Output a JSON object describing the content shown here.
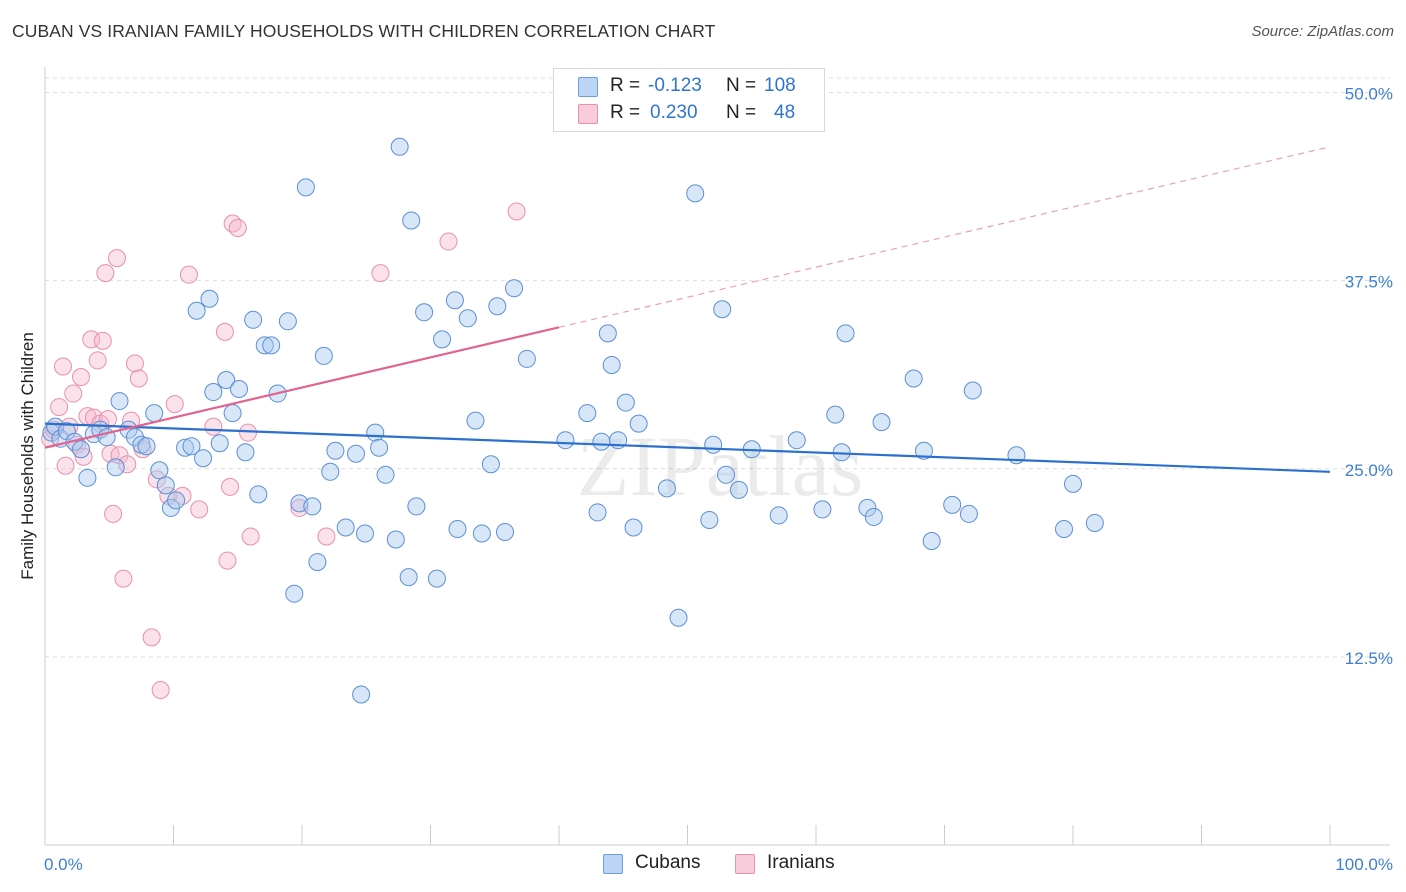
{
  "title": "CUBAN VS IRANIAN FAMILY HOUSEHOLDS WITH CHILDREN CORRELATION CHART",
  "source": "Source: ZipAtlas.com",
  "watermark": "ZIPatlas",
  "stats": [
    {
      "r_label": "R =",
      "r_value": "-0.123",
      "n_label": "N =",
      "n_value": "108"
    },
    {
      "r_label": "R =",
      "r_value": "0.230",
      "n_label": "N =",
      "n_value": "48"
    }
  ],
  "legend": [
    "Cubans",
    "Iranians"
  ],
  "colors": {
    "cubans": "#a9c9f0",
    "cubans_line": "#2a70cc",
    "iranians": "#f5b8cc",
    "iranians_line": "#e0648f",
    "tick_text": "#3d7fd4"
  },
  "chart_data": {
    "type": "scatter",
    "ylabel": "Family Households with Children",
    "xlabel": "",
    "x_tick_labels": [
      "0.0%",
      "100.0%"
    ],
    "y_tick_labels": [
      "12.5%",
      "25.0%",
      "37.5%",
      "50.0%"
    ],
    "y_ticks": [
      12.5,
      25.0,
      37.5,
      50.0
    ],
    "xlim": [
      0,
      100
    ],
    "ylim": [
      0,
      51.5
    ],
    "grid": true,
    "series": [
      {
        "name": "Cubans",
        "trend": {
          "x": [
            0,
            100
          ],
          "y": [
            28.0,
            24.8
          ]
        },
        "points": [
          [
            0.5,
            27.4
          ],
          [
            0.8,
            27.8
          ],
          [
            1.2,
            27.0
          ],
          [
            1.7,
            27.5
          ],
          [
            2.3,
            26.8
          ],
          [
            2.8,
            26.3
          ],
          [
            3.3,
            24.4
          ],
          [
            3.8,
            27.3
          ],
          [
            4.3,
            27.6
          ],
          [
            4.8,
            27.1
          ],
          [
            5.5,
            25.1
          ],
          [
            5.8,
            29.5
          ],
          [
            6.5,
            27.6
          ],
          [
            7.0,
            27.1
          ],
          [
            7.5,
            26.6
          ],
          [
            7.9,
            26.5
          ],
          [
            8.5,
            28.7
          ],
          [
            8.9,
            24.9
          ],
          [
            9.4,
            23.9
          ],
          [
            9.8,
            22.4
          ],
          [
            10.2,
            22.9
          ],
          [
            10.9,
            26.4
          ],
          [
            11.4,
            26.5
          ],
          [
            11.8,
            35.5
          ],
          [
            12.3,
            25.7
          ],
          [
            12.8,
            36.3
          ],
          [
            13.1,
            30.1
          ],
          [
            13.6,
            26.7
          ],
          [
            14.1,
            30.9
          ],
          [
            14.6,
            28.7
          ],
          [
            15.1,
            30.3
          ],
          [
            15.6,
            26.1
          ],
          [
            16.2,
            34.9
          ],
          [
            16.6,
            23.3
          ],
          [
            17.1,
            33.2
          ],
          [
            17.6,
            33.2
          ],
          [
            18.1,
            30.0
          ],
          [
            18.9,
            34.8
          ],
          [
            19.4,
            16.7
          ],
          [
            19.8,
            22.7
          ],
          [
            20.3,
            43.7
          ],
          [
            20.8,
            22.5
          ],
          [
            21.2,
            18.8
          ],
          [
            21.7,
            32.5
          ],
          [
            22.2,
            24.8
          ],
          [
            22.6,
            26.2
          ],
          [
            23.4,
            21.1
          ],
          [
            24.2,
            26.0
          ],
          [
            24.6,
            10.0
          ],
          [
            24.9,
            20.7
          ],
          [
            25.7,
            27.4
          ],
          [
            26.0,
            26.4
          ],
          [
            26.5,
            24.6
          ],
          [
            27.3,
            20.3
          ],
          [
            27.6,
            46.4
          ],
          [
            28.3,
            17.8
          ],
          [
            28.5,
            41.5
          ],
          [
            28.9,
            22.5
          ],
          [
            29.5,
            35.4
          ],
          [
            30.5,
            17.7
          ],
          [
            30.9,
            33.6
          ],
          [
            31.9,
            36.2
          ],
          [
            32.1,
            21.0
          ],
          [
            32.9,
            35.0
          ],
          [
            33.5,
            28.2
          ],
          [
            34.0,
            20.7
          ],
          [
            34.7,
            25.3
          ],
          [
            35.2,
            35.8
          ],
          [
            35.8,
            20.8
          ],
          [
            36.5,
            37.0
          ],
          [
            37.5,
            32.3
          ],
          [
            40.5,
            26.9
          ],
          [
            42.2,
            28.7
          ],
          [
            43.0,
            22.1
          ],
          [
            43.3,
            26.8
          ],
          [
            43.8,
            34.0
          ],
          [
            44.1,
            31.9
          ],
          [
            44.6,
            26.9
          ],
          [
            45.2,
            29.4
          ],
          [
            45.8,
            21.1
          ],
          [
            46.2,
            28.0
          ],
          [
            48.4,
            23.7
          ],
          [
            49.3,
            15.1
          ],
          [
            50.6,
            43.3
          ],
          [
            51.7,
            21.6
          ],
          [
            52.0,
            26.6
          ],
          [
            52.7,
            35.6
          ],
          [
            53.0,
            24.6
          ],
          [
            54.0,
            23.6
          ],
          [
            55.0,
            26.3
          ],
          [
            57.1,
            21.9
          ],
          [
            58.5,
            26.9
          ],
          [
            60.5,
            22.3
          ],
          [
            61.5,
            28.6
          ],
          [
            62.0,
            26.1
          ],
          [
            62.3,
            34.0
          ],
          [
            64.0,
            22.4
          ],
          [
            64.5,
            21.8
          ],
          [
            65.1,
            28.1
          ],
          [
            67.6,
            31.0
          ],
          [
            68.4,
            26.2
          ],
          [
            69.0,
            20.2
          ],
          [
            70.6,
            22.6
          ],
          [
            71.9,
            22.0
          ],
          [
            72.2,
            30.2
          ],
          [
            75.6,
            25.9
          ],
          [
            79.3,
            21.0
          ],
          [
            80.0,
            24.0
          ],
          [
            81.7,
            21.4
          ]
        ]
      },
      {
        "name": "Iranians",
        "trend": {
          "x": [
            0,
            40
          ],
          "y": [
            26.4,
            34.4
          ]
        },
        "trend_extension": {
          "x": [
            40,
            100
          ],
          "y": [
            34.4,
            46.4
          ]
        },
        "points": [
          [
            0.4,
            27.0
          ],
          [
            0.7,
            27.6
          ],
          [
            1.1,
            29.1
          ],
          [
            1.4,
            31.8
          ],
          [
            1.6,
            25.2
          ],
          [
            1.9,
            27.8
          ],
          [
            2.2,
            30.0
          ],
          [
            2.5,
            26.6
          ],
          [
            2.8,
            31.1
          ],
          [
            3.0,
            25.8
          ],
          [
            3.3,
            28.5
          ],
          [
            3.6,
            33.6
          ],
          [
            3.8,
            28.4
          ],
          [
            4.1,
            32.2
          ],
          [
            4.3,
            28.0
          ],
          [
            4.5,
            33.5
          ],
          [
            4.7,
            38.0
          ],
          [
            4.9,
            28.3
          ],
          [
            5.1,
            26.0
          ],
          [
            5.3,
            22.0
          ],
          [
            5.6,
            39.0
          ],
          [
            5.8,
            25.9
          ],
          [
            6.1,
            17.7
          ],
          [
            6.4,
            25.3
          ],
          [
            6.7,
            28.2
          ],
          [
            7.0,
            32.0
          ],
          [
            7.3,
            31.0
          ],
          [
            7.6,
            26.3
          ],
          [
            8.3,
            13.8
          ],
          [
            8.7,
            24.3
          ],
          [
            9.0,
            10.3
          ],
          [
            9.6,
            23.2
          ],
          [
            10.1,
            29.3
          ],
          [
            10.7,
            23.2
          ],
          [
            11.2,
            37.9
          ],
          [
            12.0,
            22.3
          ],
          [
            13.1,
            27.8
          ],
          [
            14.0,
            34.1
          ],
          [
            14.2,
            18.9
          ],
          [
            14.4,
            23.8
          ],
          [
            14.6,
            41.3
          ],
          [
            15.0,
            41.0
          ],
          [
            15.8,
            27.4
          ],
          [
            16.0,
            20.5
          ],
          [
            19.8,
            22.4
          ],
          [
            21.9,
            20.5
          ],
          [
            26.1,
            38.0
          ],
          [
            31.4,
            40.1
          ],
          [
            36.7,
            42.1
          ]
        ]
      }
    ]
  }
}
